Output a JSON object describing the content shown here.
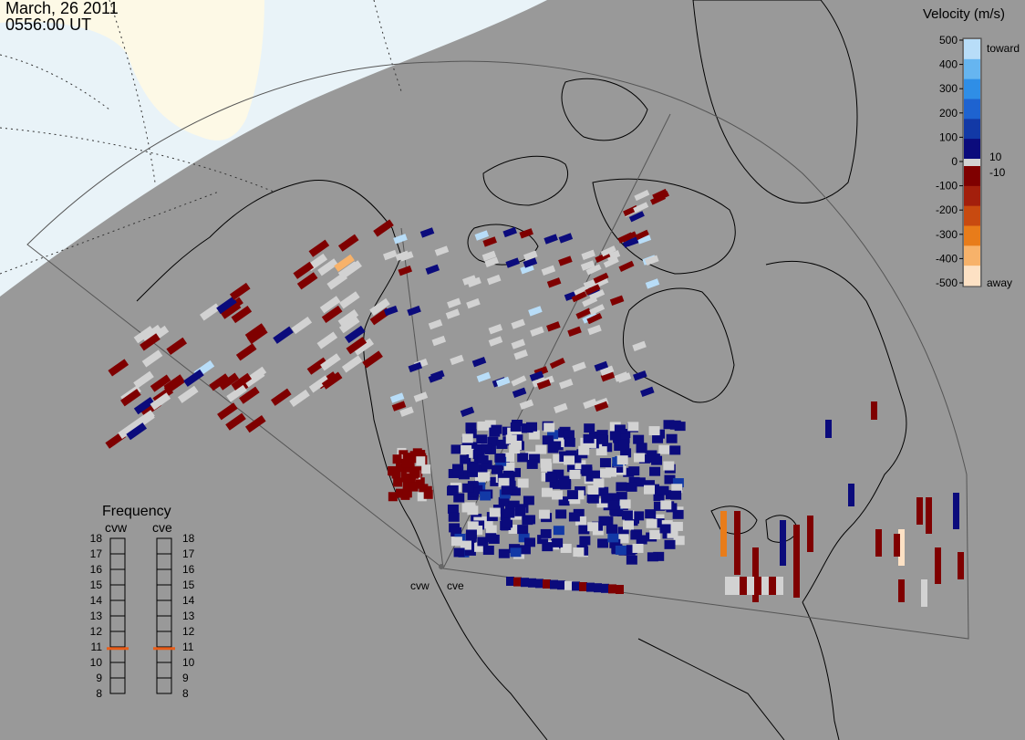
{
  "header": {
    "date": "March, 26 2011",
    "time": "0556:00 UT"
  },
  "colors": {
    "background": "#999999",
    "daylight": "#fdf9e6",
    "twilight": "#e9f3f8",
    "no_velocity": "#d2d2d2",
    "coast_line": "#000000"
  },
  "velocity_scale": {
    "title": "Velocity (m/s)",
    "ticks": [
      "500",
      "400",
      "300",
      "200",
      "100",
      "0",
      "-100",
      "-200",
      "-300",
      "-400",
      "-500"
    ],
    "toward_label": "toward",
    "away_label": "away",
    "plus_threshold": "10",
    "minus_threshold": "-10",
    "positive_colors": [
      "#0b0b7c",
      "#1239a6",
      "#1e63d0",
      "#2f8ee6",
      "#66b5f0",
      "#b8ddf8"
    ],
    "negative_colors": [
      "#7f0000",
      "#a31f0c",
      "#c84a10",
      "#e87c1a",
      "#f7b26a",
      "#fde1c4"
    ]
  },
  "frequency": {
    "title": "Frequency",
    "radars": [
      "cvw",
      "cve"
    ],
    "scale": [
      "18",
      "17",
      "16",
      "15",
      "14",
      "13",
      "12",
      "11",
      "10",
      "9",
      "8"
    ],
    "markers_mhz": [
      10.9,
      10.9
    ],
    "marker_color": "#e85d1a"
  },
  "radar_sites": {
    "west_label": "cvw",
    "east_label": "cve"
  }
}
